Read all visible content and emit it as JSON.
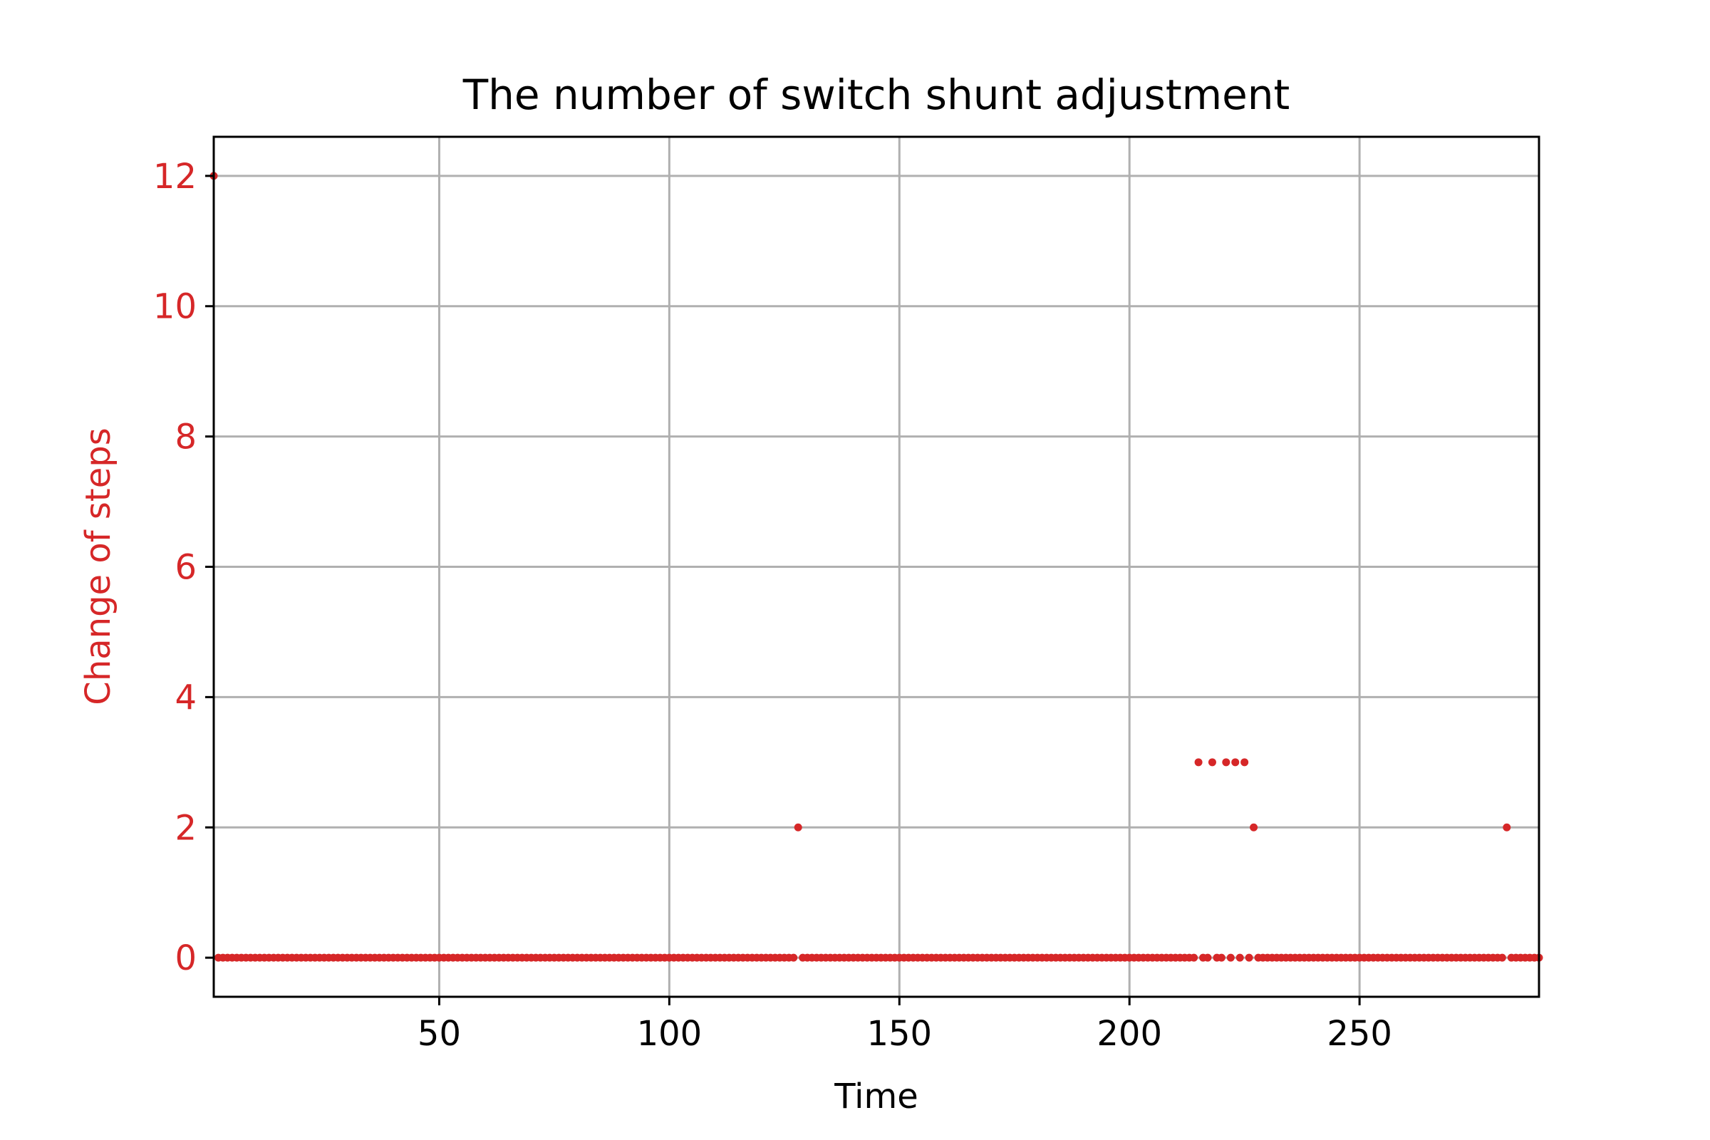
{
  "chart_data": {
    "type": "scatter",
    "title": "The number of switch shunt adjustment",
    "xlabel": "Time",
    "ylabel": "Change of steps",
    "xlim": [
      1,
      289
    ],
    "ylim": [
      -0.6,
      12.6
    ],
    "xticks": [
      50,
      100,
      150,
      200,
      250
    ],
    "yticks": [
      0,
      2,
      4,
      6,
      8,
      10,
      12
    ],
    "grid": true,
    "legend": "none",
    "x_range": [
      1,
      289
    ],
    "baseline_value": 0,
    "nonzero_points": [
      {
        "x": 1,
        "y": 12
      },
      {
        "x": 128,
        "y": 2
      },
      {
        "x": 215,
        "y": 3
      },
      {
        "x": 218,
        "y": 3
      },
      {
        "x": 221,
        "y": 3
      },
      {
        "x": 223,
        "y": 3
      },
      {
        "x": 225,
        "y": 3
      },
      {
        "x": 227,
        "y": 2
      },
      {
        "x": 282,
        "y": 2
      }
    ],
    "colors": {
      "points": "#d62728",
      "ylabel": "#d62728",
      "yticks": "#d62728",
      "grid": "#b0b0b0",
      "axes": "#000000"
    }
  }
}
